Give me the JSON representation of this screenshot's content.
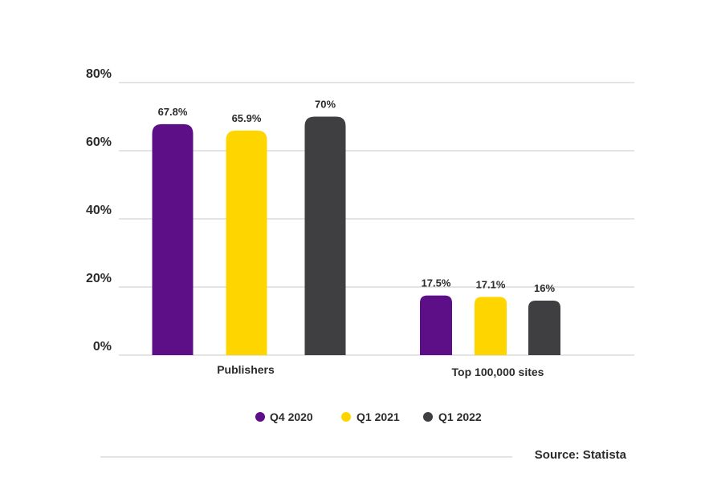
{
  "chart_data": {
    "type": "bar",
    "categories": [
      "Publishers",
      "Top 100,000 sites"
    ],
    "series": [
      {
        "name": "Q4 2020",
        "values": [
          67.8,
          17.5
        ],
        "labels": [
          "67.8%",
          "17.5%"
        ],
        "color": "#5c0f86"
      },
      {
        "name": "Q1 2021",
        "values": [
          65.9,
          17.1
        ],
        "labels": [
          "65.9%",
          "17.1%"
        ],
        "color": "#ffd500"
      },
      {
        "name": "Q1 2022",
        "values": [
          70,
          16
        ],
        "labels": [
          "70%",
          "16%"
        ],
        "color": "#3f3f42"
      }
    ],
    "y_ticks": [
      {
        "value": 0,
        "label": "0%"
      },
      {
        "value": 20,
        "label": "20%"
      },
      {
        "value": 40,
        "label": "40%"
      },
      {
        "value": 60,
        "label": "60%"
      },
      {
        "value": 80,
        "label": "80%"
      }
    ],
    "ylim": [
      0,
      80
    ],
    "grid": true,
    "legend_position": "bottom-center",
    "title": "",
    "xlabel": "",
    "ylabel": ""
  },
  "source": {
    "text": "Source: Statista"
  },
  "colors": {
    "grid": "#c8c8c8",
    "text": "#2b2b2b",
    "source_line": "#c8c8c8"
  }
}
